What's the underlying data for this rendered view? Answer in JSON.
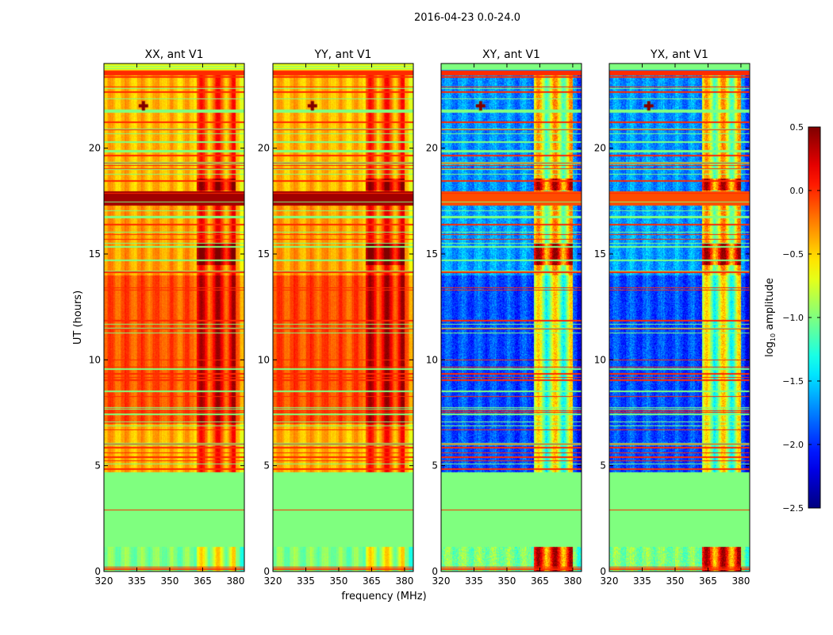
{
  "chart_data": {
    "type": "heatmap",
    "title": "2016-04-23 0.0-24.0",
    "xlabel": "frequency (MHz)",
    "ylabel": "UT (hours)",
    "xlim": [
      320,
      384
    ],
    "ylim": [
      0,
      24
    ],
    "xticks": [
      "320",
      "335",
      "350",
      "365",
      "380"
    ],
    "xtick_values": [
      320,
      335,
      350,
      365,
      380
    ],
    "yticks": [
      "0",
      "5",
      "10",
      "15",
      "20"
    ],
    "ytick_values": [
      0,
      5,
      10,
      15,
      20
    ],
    "colorbar": {
      "label": "log10 amplitude",
      "label_main": "log",
      "label_sub": "10",
      "label_rest": " amplitude",
      "range": [
        -2.5,
        0.5
      ],
      "ticks": [
        "0.5",
        "0.0",
        "−0.5",
        "−1.0",
        "−1.5",
        "−2.0",
        "−2.5"
      ],
      "tick_values": [
        0.5,
        0.0,
        -0.5,
        -1.0,
        -1.5,
        -2.0,
        -2.5
      ],
      "colormap": "jet"
    },
    "panels": [
      {
        "title": "XX, ant V1",
        "kind": "parallel",
        "bands": [
          {
            "ut": [
              0,
              4.7
            ],
            "level": -1.0
          },
          {
            "ut": [
              4.7,
              7.0
            ],
            "level": -0.4
          },
          {
            "ut": [
              7.0,
              14.0
            ],
            "level": -0.12
          },
          {
            "ut": [
              14.0,
              17.3
            ],
            "level": -0.35
          },
          {
            "ut": [
              17.3,
              18.0
            ],
            "level": 0.4
          },
          {
            "ut": [
              18.0,
              24.0
            ],
            "level": -0.42
          }
        ],
        "bright_freq_range": [
          362,
          380
        ]
      },
      {
        "title": "YY, ant V1",
        "kind": "parallel",
        "bands": [
          {
            "ut": [
              0,
              4.7
            ],
            "level": -1.0
          },
          {
            "ut": [
              4.7,
              7.0
            ],
            "level": -0.4
          },
          {
            "ut": [
              7.0,
              14.0
            ],
            "level": -0.1
          },
          {
            "ut": [
              14.0,
              17.3
            ],
            "level": -0.35
          },
          {
            "ut": [
              17.3,
              18.0
            ],
            "level": 0.4
          },
          {
            "ut": [
              18.0,
              24.0
            ],
            "level": -0.42
          }
        ],
        "bright_freq_range": [
          362,
          380
        ]
      },
      {
        "title": "XY, ant V1",
        "kind": "cross",
        "bands": [
          {
            "ut": [
              0,
              4.7
            ],
            "level": -1.0
          },
          {
            "ut": [
              4.7,
              14.0
            ],
            "level": -1.9
          },
          {
            "ut": [
              14.0,
              17.3
            ],
            "level": -1.65
          },
          {
            "ut": [
              17.3,
              18.0
            ],
            "level": -0.1
          },
          {
            "ut": [
              18.0,
              24.0
            ],
            "level": -1.7
          }
        ],
        "bright_freq_range": [
          362,
          380
        ]
      },
      {
        "title": "YX, ant V1",
        "kind": "cross",
        "bands": [
          {
            "ut": [
              0,
              4.7
            ],
            "level": -1.0
          },
          {
            "ut": [
              4.7,
              14.0
            ],
            "level": -1.9
          },
          {
            "ut": [
              14.0,
              17.3
            ],
            "level": -1.65
          },
          {
            "ut": [
              17.3,
              18.0
            ],
            "level": -0.1
          },
          {
            "ut": [
              18.0,
              24.0
            ],
            "level": -1.7
          }
        ],
        "bright_freq_range": [
          362,
          380
        ]
      }
    ]
  }
}
